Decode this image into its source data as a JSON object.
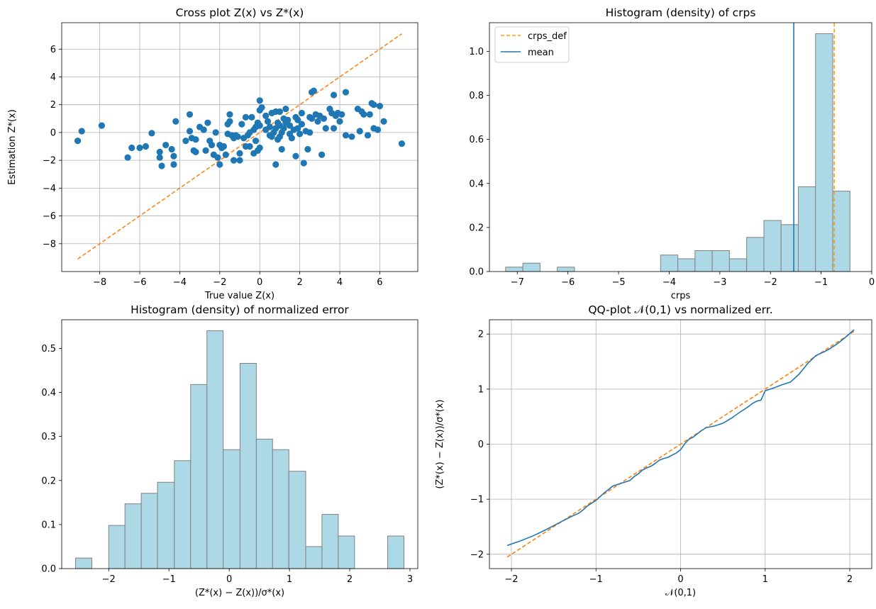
{
  "chart_data": [
    {
      "id": "cross",
      "type": "scatter",
      "title": "Cross plot Z(x) vs Z*(x)",
      "xlabel": "True value Z(x)",
      "ylabel": "Estimation Z*(x)",
      "xlim": [
        -9.9,
        7.9
      ],
      "ylim": [
        -10.0,
        7.9
      ],
      "xticks": [
        -8,
        -6,
        -4,
        -2,
        0,
        2,
        4,
        6
      ],
      "yticks": [
        -8,
        -6,
        -4,
        -2,
        0,
        2,
        4,
        6
      ],
      "grid": true,
      "point_color": "#1f77b4",
      "line_color": "#ff7f0e",
      "identity_line": [
        [
          -9.1,
          -9.1
        ],
        [
          7.1,
          7.1
        ]
      ],
      "points": [
        [
          -9.1,
          -0.6
        ],
        [
          -8.9,
          0.1
        ],
        [
          -7.9,
          0.5
        ],
        [
          -6.6,
          -1.8
        ],
        [
          -6.4,
          -1.1
        ],
        [
          -6.0,
          -1.1
        ],
        [
          -5.7,
          -1.0
        ],
        [
          -5.4,
          -0.05
        ],
        [
          -5.0,
          -1.8
        ],
        [
          -5.0,
          -1.4
        ],
        [
          -4.9,
          -2.4
        ],
        [
          -4.7,
          -0.9
        ],
        [
          -4.4,
          -1.2
        ],
        [
          -4.3,
          -2.3
        ],
        [
          -4.3,
          -1.7
        ],
        [
          -4.2,
          0.8
        ],
        [
          -3.7,
          -0.6
        ],
        [
          -3.5,
          1.3
        ],
        [
          -3.5,
          0.1
        ],
        [
          -3.4,
          -0.4
        ],
        [
          -3.3,
          -1.3
        ],
        [
          -3.2,
          -1.4
        ],
        [
          -3.2,
          -0.5
        ],
        [
          -3.0,
          0.4
        ],
        [
          -2.8,
          0.2
        ],
        [
          -2.7,
          -1.3
        ],
        [
          -2.6,
          0.7
        ],
        [
          -2.5,
          -0.6
        ],
        [
          -2.4,
          -0.9
        ],
        [
          -2.3,
          -1.6
        ],
        [
          -2.2,
          0.0
        ],
        [
          -2.1,
          -1.8
        ],
        [
          -2.0,
          -2.3
        ],
        [
          -2.0,
          -0.9
        ],
        [
          -1.9,
          -1.1
        ],
        [
          -1.8,
          -1.0
        ],
        [
          -1.7,
          -1.6
        ],
        [
          -1.6,
          0.6
        ],
        [
          -1.6,
          -0.1
        ],
        [
          -1.5,
          1.3
        ],
        [
          -1.5,
          0.8
        ],
        [
          -1.4,
          -0.2
        ],
        [
          -1.3,
          -2.0
        ],
        [
          -1.3,
          -0.4
        ],
        [
          -1.2,
          -0.2
        ],
        [
          -1.1,
          -0.3
        ],
        [
          -1.0,
          -1.5
        ],
        [
          -1.0,
          -2.0
        ],
        [
          -0.9,
          0.6
        ],
        [
          -0.8,
          -0.4
        ],
        [
          -0.7,
          1.1
        ],
        [
          -0.7,
          -1.0
        ],
        [
          -0.6,
          -0.2
        ],
        [
          -0.5,
          0.0
        ],
        [
          -0.5,
          -1.0
        ],
        [
          -0.4,
          1.1
        ],
        [
          -0.3,
          0.2
        ],
        [
          -0.3,
          -1.5
        ],
        [
          -0.2,
          0.4
        ],
        [
          -0.2,
          -0.6
        ],
        [
          -0.1,
          0.7
        ],
        [
          -0.1,
          -1.3
        ],
        [
          0.0,
          2.3
        ],
        [
          0.0,
          1.6
        ],
        [
          0.1,
          1.8
        ],
        [
          0.0,
          0.5
        ],
        [
          0.0,
          -1.1
        ],
        [
          0.3,
          1.2
        ],
        [
          0.3,
          0.2
        ],
        [
          0.4,
          0.8
        ],
        [
          0.5,
          -0.2
        ],
        [
          0.5,
          0.4
        ],
        [
          0.6,
          1.4
        ],
        [
          0.6,
          -0.3
        ],
        [
          0.7,
          0.0
        ],
        [
          0.8,
          1.5
        ],
        [
          0.8,
          -2.3
        ],
        [
          0.8,
          0.3
        ],
        [
          0.9,
          0.7
        ],
        [
          0.9,
          -0.5
        ],
        [
          1.0,
          1.5
        ],
        [
          1.0,
          0.5
        ],
        [
          1.0,
          -0.3
        ],
        [
          1.1,
          -1.2
        ],
        [
          1.1,
          0.0
        ],
        [
          1.2,
          1.0
        ],
        [
          1.2,
          0.3
        ],
        [
          1.3,
          1.7
        ],
        [
          1.3,
          0.7
        ],
        [
          1.4,
          0.9
        ],
        [
          1.5,
          -0.1
        ],
        [
          1.5,
          0.5
        ],
        [
          1.6,
          -0.4
        ],
        [
          1.7,
          0.2
        ],
        [
          1.8,
          1.1
        ],
        [
          1.8,
          -1.7
        ],
        [
          1.9,
          0.9
        ],
        [
          1.9,
          0.3
        ],
        [
          2.0,
          -0.1
        ],
        [
          2.1,
          1.4
        ],
        [
          2.1,
          0.6
        ],
        [
          2.2,
          -2.2
        ],
        [
          2.3,
          0.1
        ],
        [
          2.4,
          -1.2
        ],
        [
          2.5,
          1.1
        ],
        [
          2.5,
          0.0
        ],
        [
          2.6,
          2.9
        ],
        [
          2.6,
          1.0
        ],
        [
          2.7,
          3.0
        ],
        [
          2.8,
          1.3
        ],
        [
          2.9,
          0.8
        ],
        [
          3.0,
          1.2
        ],
        [
          3.1,
          -1.6
        ],
        [
          3.2,
          1.0
        ],
        [
          3.3,
          0.3
        ],
        [
          3.5,
          1.7
        ],
        [
          3.6,
          1.4
        ],
        [
          3.7,
          2.7
        ],
        [
          3.7,
          0.3
        ],
        [
          3.8,
          1.2
        ],
        [
          3.9,
          1.4
        ],
        [
          4.0,
          0.8
        ],
        [
          4.1,
          1.3
        ],
        [
          4.3,
          2.9
        ],
        [
          4.3,
          -0.2
        ],
        [
          4.6,
          -0.3
        ],
        [
          4.9,
          1.7
        ],
        [
          5.0,
          0.1
        ],
        [
          5.1,
          1.5
        ],
        [
          5.2,
          1.3
        ],
        [
          5.4,
          -0.2
        ],
        [
          5.5,
          1.3
        ],
        [
          5.6,
          2.1
        ],
        [
          5.7,
          2.0
        ],
        [
          5.7,
          0.3
        ],
        [
          5.9,
          0.2
        ],
        [
          6.0,
          1.9
        ],
        [
          6.2,
          0.8
        ],
        [
          7.1,
          -0.8
        ]
      ]
    },
    {
      "id": "crps",
      "type": "bar",
      "title": "Histogram (density) of crps",
      "xlabel": "crps",
      "ylabel": "",
      "xlim": [
        -7.55,
        0.0
      ],
      "ylim": [
        0.0,
        1.13
      ],
      "xticks": [
        -7,
        -6,
        -5,
        -4,
        -3,
        -2,
        -1,
        0
      ],
      "yticks": [
        0.0,
        0.2,
        0.4,
        0.6,
        0.8,
        1.0
      ],
      "ytick_labels": [
        "0.0",
        "0.2",
        "0.4",
        "0.6",
        "0.8",
        "1.0"
      ],
      "grid": false,
      "bar_color": "#add8e6",
      "edge_color": "#808080",
      "bin_edges": [
        -7.23,
        -6.89,
        -6.55,
        -6.21,
        -5.87,
        -5.53,
        -5.19,
        -4.85,
        -4.51,
        -4.17,
        -3.83,
        -3.49,
        -3.15,
        -2.81,
        -2.47,
        -2.13,
        -1.79,
        -1.45,
        -1.11,
        -0.77,
        -0.43
      ],
      "values": [
        0.02,
        0.038,
        0.0,
        0.02,
        0.0,
        0.0,
        0.0,
        0.0,
        0.0,
        0.075,
        0.058,
        0.095,
        0.095,
        0.058,
        0.155,
        0.232,
        0.213,
        0.385,
        1.08,
        0.365
      ],
      "mean_line": -1.54,
      "crps_def_line": -0.74,
      "mean_color": "#1f77b4",
      "crps_def_color": "#ff9f0e",
      "legend": [
        "crps_def",
        "mean"
      ],
      "legend_position": "upper-left"
    },
    {
      "id": "normerr",
      "type": "bar",
      "title": "Histogram (density) of normalized error",
      "xlabel": "(Z*(x) − Z(x))/σ*(x)",
      "ylabel": "",
      "xlim": [
        -2.78,
        3.13
      ],
      "ylim": [
        0.0,
        0.565
      ],
      "xticks": [
        -2,
        -1,
        0,
        1,
        2,
        3
      ],
      "yticks": [
        0.0,
        0.1,
        0.2,
        0.3,
        0.4,
        0.5
      ],
      "ytick_labels": [
        "0.0",
        "0.1",
        "0.2",
        "0.3",
        "0.4",
        "0.5"
      ],
      "grid": false,
      "bar_color": "#add8e6",
      "edge_color": "#808080",
      "bin_edges": [
        -2.55,
        -2.28,
        -2.0,
        -1.73,
        -1.46,
        -1.19,
        -0.91,
        -0.64,
        -0.37,
        -0.1,
        0.18,
        0.45,
        0.72,
        0.99,
        1.27,
        1.54,
        1.81,
        2.08,
        2.36,
        2.63,
        2.9
      ],
      "values": [
        0.024,
        0.0,
        0.098,
        0.147,
        0.171,
        0.196,
        0.245,
        0.418,
        0.54,
        0.27,
        0.466,
        0.294,
        0.27,
        0.221,
        0.05,
        0.123,
        0.074,
        0.0,
        0.0,
        0.074
      ]
    },
    {
      "id": "qq",
      "type": "line",
      "title": "QQ-plot 𝒩(0,1) vs normalized err.",
      "xlabel": "𝒩(0,1)",
      "ylabel": "(Z*(x) − Z(x))/σ*(x)",
      "xlim": [
        -2.26,
        2.26
      ],
      "ylim": [
        -2.26,
        2.26
      ],
      "xticks": [
        -2,
        -1,
        0,
        1,
        2
      ],
      "yticks": [
        -2,
        -1,
        0,
        1,
        2
      ],
      "grid": true,
      "line_color": "#1f77b4",
      "ref_color": "#ff7f0e",
      "reference_line": [
        [
          -2.05,
          -2.05
        ],
        [
          2.05,
          2.05
        ]
      ],
      "series": [
        [
          -2.05,
          -1.84
        ],
        [
          -1.9,
          -1.76
        ],
        [
          -1.75,
          -1.67
        ],
        [
          -1.6,
          -1.56
        ],
        [
          -1.5,
          -1.48
        ],
        [
          -1.4,
          -1.4
        ],
        [
          -1.3,
          -1.32
        ],
        [
          -1.2,
          -1.25
        ],
        [
          -1.15,
          -1.19
        ],
        [
          -1.1,
          -1.12
        ],
        [
          -1.0,
          -1.02
        ],
        [
          -0.95,
          -0.95
        ],
        [
          -0.9,
          -0.88
        ],
        [
          -0.85,
          -0.82
        ],
        [
          -0.8,
          -0.76
        ],
        [
          -0.7,
          -0.71
        ],
        [
          -0.6,
          -0.66
        ],
        [
          -0.55,
          -0.59
        ],
        [
          -0.5,
          -0.54
        ],
        [
          -0.45,
          -0.47
        ],
        [
          -0.4,
          -0.43
        ],
        [
          -0.35,
          -0.4
        ],
        [
          -0.3,
          -0.35
        ],
        [
          -0.25,
          -0.29
        ],
        [
          -0.2,
          -0.26
        ],
        [
          -0.15,
          -0.24
        ],
        [
          -0.1,
          -0.2
        ],
        [
          -0.05,
          -0.16
        ],
        [
          0.0,
          -0.1
        ],
        [
          0.05,
          0.01
        ],
        [
          0.1,
          0.09
        ],
        [
          0.15,
          0.13
        ],
        [
          0.2,
          0.19
        ],
        [
          0.25,
          0.25
        ],
        [
          0.3,
          0.3
        ],
        [
          0.4,
          0.33
        ],
        [
          0.5,
          0.38
        ],
        [
          0.6,
          0.47
        ],
        [
          0.7,
          0.58
        ],
        [
          0.8,
          0.68
        ],
        [
          0.85,
          0.74
        ],
        [
          0.9,
          0.78
        ],
        [
          0.95,
          0.8
        ],
        [
          1.0,
          0.97
        ],
        [
          1.1,
          1.02
        ],
        [
          1.2,
          1.08
        ],
        [
          1.3,
          1.13
        ],
        [
          1.4,
          1.27
        ],
        [
          1.5,
          1.46
        ],
        [
          1.6,
          1.61
        ],
        [
          1.7,
          1.68
        ],
        [
          1.75,
          1.72
        ],
        [
          1.85,
          1.82
        ],
        [
          1.95,
          1.94
        ],
        [
          2.05,
          2.08
        ]
      ]
    }
  ]
}
